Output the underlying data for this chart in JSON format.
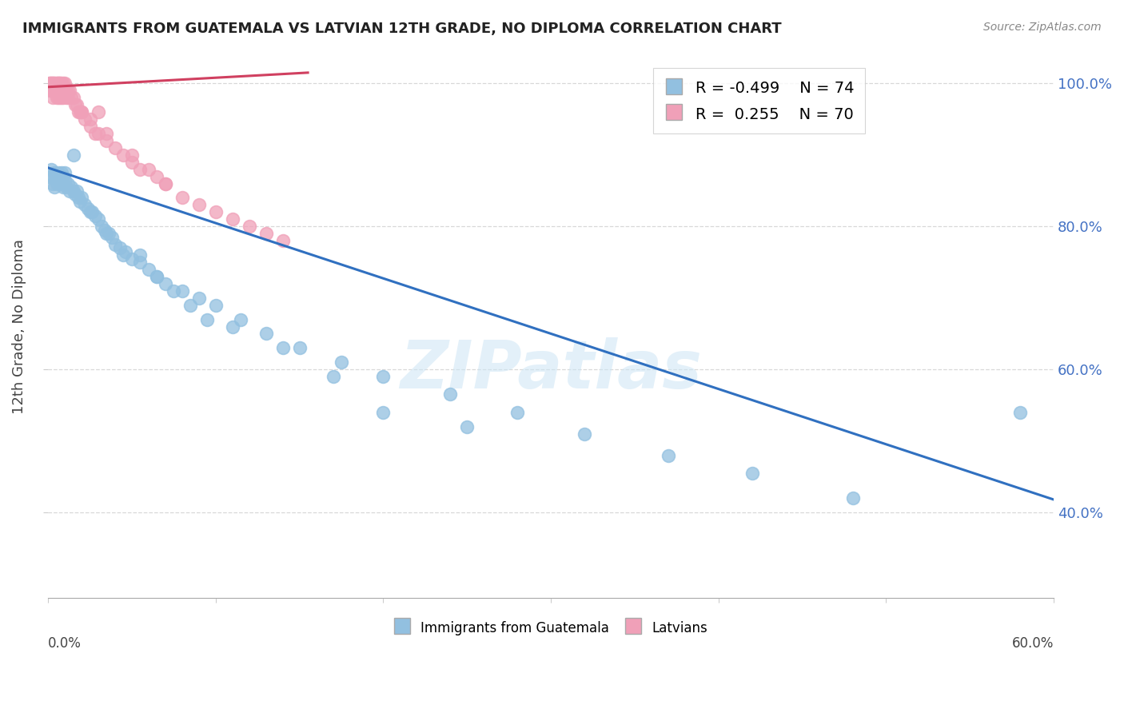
{
  "title": "IMMIGRANTS FROM GUATEMALA VS LATVIAN 12TH GRADE, NO DIPLOMA CORRELATION CHART",
  "source": "Source: ZipAtlas.com",
  "ylabel": "12th Grade, No Diploma",
  "xlim": [
    0.0,
    0.6
  ],
  "ylim": [
    0.28,
    1.04
  ],
  "y_ticks": [
    0.4,
    0.6,
    0.8,
    1.0
  ],
  "y_tick_labels": [
    "40.0%",
    "60.0%",
    "80.0%",
    "100.0%"
  ],
  "blue_color": "#92c0e0",
  "pink_color": "#f0a0b8",
  "blue_line_color": "#3070c0",
  "pink_line_color": "#d04060",
  "watermark": "ZIPatlas",
  "legend_label_blue": "Immigrants from Guatemala",
  "legend_label_pink": "Latvians",
  "legend_blue_r": "R = -0.499",
  "legend_blue_n": "N = 74",
  "legend_pink_r": "R =  0.255",
  "legend_pink_n": "N = 70",
  "blue_trend_x": [
    0.0,
    0.6
  ],
  "blue_trend_y": [
    0.882,
    0.418
  ],
  "pink_trend_x": [
    0.0,
    0.155
  ],
  "pink_trend_y": [
    0.995,
    1.015
  ],
  "blue_x": [
    0.001,
    0.002,
    0.003,
    0.003,
    0.004,
    0.004,
    0.005,
    0.005,
    0.006,
    0.006,
    0.007,
    0.007,
    0.008,
    0.008,
    0.009,
    0.009,
    0.01,
    0.01,
    0.011,
    0.012,
    0.013,
    0.014,
    0.015,
    0.016,
    0.017,
    0.018,
    0.019,
    0.02,
    0.022,
    0.024,
    0.026,
    0.028,
    0.03,
    0.032,
    0.034,
    0.036,
    0.038,
    0.04,
    0.043,
    0.046,
    0.05,
    0.055,
    0.06,
    0.065,
    0.07,
    0.08,
    0.09,
    0.1,
    0.115,
    0.13,
    0.15,
    0.175,
    0.2,
    0.24,
    0.28,
    0.32,
    0.37,
    0.42,
    0.48,
    0.015,
    0.025,
    0.035,
    0.045,
    0.055,
    0.065,
    0.075,
    0.085,
    0.095,
    0.11,
    0.14,
    0.17,
    0.2,
    0.25,
    0.58
  ],
  "blue_y": [
    0.87,
    0.88,
    0.87,
    0.86,
    0.875,
    0.855,
    0.87,
    0.86,
    0.875,
    0.865,
    0.87,
    0.86,
    0.875,
    0.865,
    0.87,
    0.855,
    0.875,
    0.865,
    0.855,
    0.86,
    0.85,
    0.855,
    0.85,
    0.845,
    0.85,
    0.84,
    0.835,
    0.84,
    0.83,
    0.825,
    0.82,
    0.815,
    0.81,
    0.8,
    0.795,
    0.79,
    0.785,
    0.775,
    0.77,
    0.765,
    0.755,
    0.75,
    0.74,
    0.73,
    0.72,
    0.71,
    0.7,
    0.69,
    0.67,
    0.65,
    0.63,
    0.61,
    0.59,
    0.565,
    0.54,
    0.51,
    0.48,
    0.455,
    0.42,
    0.9,
    0.82,
    0.79,
    0.76,
    0.76,
    0.73,
    0.71,
    0.69,
    0.67,
    0.66,
    0.63,
    0.59,
    0.54,
    0.52,
    0.54
  ],
  "pink_x": [
    0.001,
    0.001,
    0.001,
    0.002,
    0.002,
    0.002,
    0.003,
    0.003,
    0.003,
    0.003,
    0.004,
    0.004,
    0.004,
    0.005,
    0.005,
    0.005,
    0.005,
    0.006,
    0.006,
    0.006,
    0.006,
    0.007,
    0.007,
    0.007,
    0.007,
    0.008,
    0.008,
    0.008,
    0.009,
    0.009,
    0.009,
    0.01,
    0.01,
    0.011,
    0.011,
    0.012,
    0.012,
    0.013,
    0.014,
    0.015,
    0.016,
    0.017,
    0.018,
    0.019,
    0.02,
    0.022,
    0.025,
    0.028,
    0.03,
    0.035,
    0.04,
    0.045,
    0.05,
    0.055,
    0.06,
    0.065,
    0.07,
    0.08,
    0.09,
    0.1,
    0.11,
    0.12,
    0.13,
    0.14,
    0.03,
    0.02,
    0.025,
    0.035,
    0.05,
    0.07
  ],
  "pink_y": [
    1.0,
    1.0,
    0.99,
    1.0,
    1.0,
    0.99,
    1.0,
    1.0,
    0.99,
    0.98,
    1.0,
    1.0,
    0.99,
    1.0,
    1.0,
    0.99,
    0.98,
    1.0,
    1.0,
    0.99,
    0.98,
    1.0,
    1.0,
    0.99,
    0.98,
    1.0,
    0.99,
    0.98,
    1.0,
    0.99,
    0.98,
    1.0,
    0.99,
    0.99,
    0.98,
    0.99,
    0.98,
    0.99,
    0.98,
    0.98,
    0.97,
    0.97,
    0.96,
    0.96,
    0.96,
    0.95,
    0.94,
    0.93,
    0.93,
    0.92,
    0.91,
    0.9,
    0.89,
    0.88,
    0.88,
    0.87,
    0.86,
    0.84,
    0.83,
    0.82,
    0.81,
    0.8,
    0.79,
    0.78,
    0.96,
    0.96,
    0.95,
    0.93,
    0.9,
    0.86
  ]
}
